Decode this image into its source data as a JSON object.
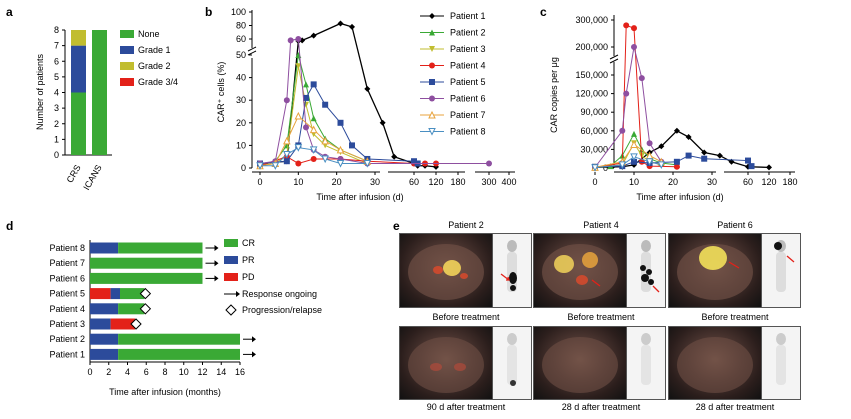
{
  "panel_labels": {
    "a": "a",
    "b": "b",
    "c": "c",
    "d": "d",
    "e": "e"
  },
  "colors": {
    "none": "#3aa935",
    "grade1": "#2c4b9b",
    "grade2": "#c1bd2f",
    "grade34": "#e32119",
    "p1": "#000000",
    "p2": "#3aa935",
    "p3": "#c1bd2f",
    "p4": "#e32119",
    "p5": "#2c4b9b",
    "p6": "#8e4fa0",
    "p7": "#e8a33c",
    "p8": "#4a8fc2"
  },
  "panel_a": {
    "ylabel": "Number of patients",
    "legend": [
      "None",
      "Grade 1",
      "Grade 2",
      "Grade 3/4"
    ],
    "chart_data": {
      "type": "bar",
      "stacked": true,
      "categories": [
        "CRS",
        "ICANS"
      ],
      "series": [
        {
          "name": "None",
          "values": [
            4,
            8
          ]
        },
        {
          "name": "Grade 1",
          "values": [
            3,
            0
          ]
        },
        {
          "name": "Grade 2",
          "values": [
            1,
            0
          ]
        },
        {
          "name": "Grade 3/4",
          "values": [
            0,
            0
          ]
        }
      ],
      "yticks": [
        0,
        1,
        2,
        3,
        4,
        5,
        6,
        7,
        8
      ],
      "ylim": [
        0,
        8
      ]
    }
  },
  "panel_b": {
    "ylabel": "CAR⁺ cells (%)",
    "xlabel": "Time after infusion (d)",
    "legend": [
      "Patient 1",
      "Patient 2",
      "Patient 3",
      "Patient 4",
      "Patient 5",
      "Patient 6",
      "Patient 7",
      "Patient 8"
    ],
    "chart_data": {
      "type": "line",
      "xticks": [
        "0",
        "10",
        "20",
        "30",
        "60",
        "120",
        "180",
        "300",
        "400"
      ],
      "yticks": [
        "0",
        "10",
        "20",
        "30",
        "40",
        "50",
        "60",
        "80",
        "100"
      ],
      "series": [
        {
          "name": "Patient 1",
          "points": [
            [
              0,
              2
            ],
            [
              7,
              3
            ],
            [
              10,
              57
            ],
            [
              11,
              58
            ],
            [
              14,
              65
            ],
            [
              21,
              83
            ],
            [
              24,
              78
            ],
            [
              28,
              35
            ],
            [
              32,
              20
            ],
            [
              35,
              5
            ],
            [
              60,
              2
            ],
            [
              70,
              1
            ],
            [
              90,
              1
            ],
            [
              120,
              0.5
            ]
          ]
        },
        {
          "name": "Patient 2",
          "points": [
            [
              0,
              1
            ],
            [
              4,
              3
            ],
            [
              7,
              10
            ],
            [
              10,
              50
            ],
            [
              12,
              37
            ],
            [
              14,
              22
            ],
            [
              17,
              13
            ],
            [
              21,
              8
            ],
            [
              28,
              3
            ]
          ]
        },
        {
          "name": "Patient 3",
          "points": [
            [
              0,
              1
            ],
            [
              4,
              2
            ],
            [
              7,
              6
            ],
            [
              10,
              45
            ],
            [
              12,
              28
            ],
            [
              14,
              15
            ],
            [
              17,
              10
            ],
            [
              21,
              7
            ],
            [
              28,
              2
            ]
          ]
        },
        {
          "name": "Patient 4",
          "points": [
            [
              0,
              1
            ],
            [
              7,
              5
            ],
            [
              10,
              2
            ],
            [
              14,
              4
            ],
            [
              21,
              4
            ],
            [
              28,
              3
            ],
            [
              60,
              2
            ],
            [
              90,
              2
            ],
            [
              120,
              2
            ]
          ]
        },
        {
          "name": "Patient 5",
          "points": [
            [
              0,
              2
            ],
            [
              7,
              3
            ],
            [
              10,
              10
            ],
            [
              12,
              31
            ],
            [
              14,
              37
            ],
            [
              17,
              28
            ],
            [
              21,
              20
            ],
            [
              24,
              10
            ],
            [
              28,
              4
            ],
            [
              60,
              3
            ],
            [
              70,
              2
            ]
          ]
        },
        {
          "name": "Patient 6",
          "points": [
            [
              0,
              2
            ],
            [
              4,
              3
            ],
            [
              7,
              30
            ],
            [
              8,
              58
            ],
            [
              10,
              60
            ],
            [
              12,
              18
            ],
            [
              14,
              8
            ],
            [
              17,
              5
            ],
            [
              21,
              4
            ],
            [
              28,
              2
            ],
            [
              300,
              2
            ]
          ]
        },
        {
          "name": "Patient 7",
          "points": [
            [
              0,
              1
            ],
            [
              4,
              2
            ],
            [
              7,
              12
            ],
            [
              10,
              23
            ],
            [
              14,
              17
            ],
            [
              17,
              12
            ],
            [
              21,
              8
            ],
            [
              28,
              3
            ]
          ]
        },
        {
          "name": "Patient 8",
          "points": [
            [
              0,
              1
            ],
            [
              4,
              1
            ],
            [
              7,
              6
            ],
            [
              10,
              9
            ],
            [
              14,
              8
            ],
            [
              17,
              4
            ],
            [
              21,
              2
            ],
            [
              28,
              2
            ]
          ]
        }
      ]
    }
  },
  "panel_c": {
    "ylabel": "CAR copies per μg",
    "xlabel": "Time after infusion (d)",
    "chart_data": {
      "type": "line",
      "xticks": [
        "0",
        "10",
        "20",
        "30",
        "60",
        "120",
        "180"
      ],
      "yticks": [
        "0",
        "30,000",
        "60,000",
        "90,000",
        "120,000",
        "150,000",
        "200,000",
        "300,000"
      ],
      "series": [
        {
          "name": "Patient 1",
          "points": [
            [
              0,
              1000
            ],
            [
              7,
              2000
            ],
            [
              10,
              5000
            ],
            [
              14,
              25000
            ],
            [
              17,
              35000
            ],
            [
              21,
              60000
            ],
            [
              24,
              50000
            ],
            [
              28,
              25000
            ],
            [
              32,
              20000
            ],
            [
              35,
              10000
            ],
            [
              60,
              2000
            ],
            [
              120,
              1000
            ]
          ]
        },
        {
          "name": "Patient 2",
          "points": [
            [
              0,
              1000
            ],
            [
              4,
              3000
            ],
            [
              7,
              20000
            ],
            [
              10,
              55000
            ],
            [
              12,
              30000
            ],
            [
              14,
              15000
            ],
            [
              17,
              8000
            ],
            [
              21,
              5000
            ]
          ]
        },
        {
          "name": "Patient 3",
          "points": [
            [
              0,
              1000
            ],
            [
              7,
              5000
            ],
            [
              10,
              40000
            ],
            [
              12,
              20000
            ],
            [
              14,
              10000
            ],
            [
              17,
              6000
            ]
          ]
        },
        {
          "name": "Patient 4",
          "points": [
            [
              0,
              1000
            ],
            [
              7,
              8000
            ],
            [
              8,
              280000
            ],
            [
              10,
              270000
            ],
            [
              12,
              10000
            ],
            [
              14,
              3000
            ],
            [
              21,
              2000
            ]
          ]
        },
        {
          "name": "Patient 5",
          "points": [
            [
              0,
              2000
            ],
            [
              7,
              3000
            ],
            [
              10,
              10000
            ],
            [
              14,
              8000
            ],
            [
              21,
              10000
            ],
            [
              24,
              20000
            ],
            [
              28,
              15000
            ],
            [
              60,
              12000
            ],
            [
              70,
              3000
            ]
          ]
        },
        {
          "name": "Patient 6",
          "points": [
            [
              0,
              1000
            ],
            [
              7,
              60000
            ],
            [
              8,
              120000
            ],
            [
              10,
              200000
            ],
            [
              12,
              145000
            ],
            [
              14,
              40000
            ],
            [
              17,
              10000
            ]
          ]
        },
        {
          "name": "Patient 7",
          "points": [
            [
              0,
              1000
            ],
            [
              7,
              10000
            ],
            [
              10,
              38000
            ],
            [
              14,
              20000
            ],
            [
              17,
              10000
            ]
          ]
        },
        {
          "name": "Patient 8",
          "points": [
            [
              0,
              500
            ],
            [
              7,
              5000
            ],
            [
              10,
              18000
            ],
            [
              14,
              10000
            ],
            [
              17,
              5000
            ]
          ]
        }
      ]
    }
  },
  "panel_d": {
    "xlabel": "Time after infusion (months)",
    "legend": [
      "CR",
      "PR",
      "PD",
      "Response ongoing",
      "Progression/relapse"
    ],
    "chart_data": {
      "type": "bar",
      "orientation": "horizontal",
      "xticks": [
        0,
        2,
        4,
        6,
        8,
        10,
        12,
        14,
        16
      ],
      "rows": [
        {
          "name": "Patient 8",
          "segments": [
            {
              "state": "PR",
              "from": 0,
              "to": 3
            },
            {
              "state": "CR",
              "from": 3,
              "to": 12
            }
          ],
          "end": "ongoing"
        },
        {
          "name": "Patient 7",
          "segments": [
            {
              "state": "CR",
              "from": 0,
              "to": 12
            }
          ],
          "end": "ongoing"
        },
        {
          "name": "Patient 6",
          "segments": [
            {
              "state": "CR",
              "from": 0,
              "to": 12
            }
          ],
          "end": "ongoing"
        },
        {
          "name": "Patient 5",
          "segments": [
            {
              "state": "PD",
              "from": 0,
              "to": 2.2
            },
            {
              "state": "PR",
              "from": 2.2,
              "to": 3.2
            },
            {
              "state": "CR",
              "from": 3.2,
              "to": 5.8
            }
          ],
          "end": "relapse"
        },
        {
          "name": "Patient 4",
          "segments": [
            {
              "state": "PR",
              "from": 0,
              "to": 3
            },
            {
              "state": "CR",
              "from": 3,
              "to": 5.8
            }
          ],
          "end": "relapse"
        },
        {
          "name": "Patient 3",
          "segments": [
            {
              "state": "PR",
              "from": 0,
              "to": 2.2
            },
            {
              "state": "PD",
              "from": 2.2,
              "to": 4.8
            }
          ],
          "end": "relapse"
        },
        {
          "name": "Patient 2",
          "segments": [
            {
              "state": "PR",
              "from": 0,
              "to": 3
            },
            {
              "state": "CR",
              "from": 3,
              "to": 16
            }
          ],
          "end": "ongoing"
        },
        {
          "name": "Patient 1",
          "segments": [
            {
              "state": "PR",
              "from": 0,
              "to": 3
            },
            {
              "state": "CR",
              "from": 3,
              "to": 16
            }
          ],
          "end": "ongoing"
        }
      ]
    }
  },
  "panel_e": {
    "patients": [
      "Patient 2",
      "Patient 4",
      "Patient 6"
    ],
    "before": [
      "Before treatment",
      "Before treatment",
      "Before treatment"
    ],
    "after": [
      "90 d after treatment",
      "28 d after treatment",
      "28 d after treatment"
    ]
  }
}
